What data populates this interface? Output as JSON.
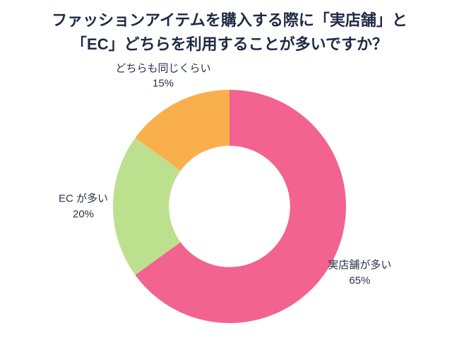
{
  "title": {
    "line1": "ファッションアイテムを購入する際に「実店舗」と",
    "line2": "「EC」どちらを利用することが多いですか？"
  },
  "chart_data": {
    "type": "pie",
    "subtype": "donut",
    "title": "ファッションアイテムを購入する際に「実店舗」と「EC」どちらを利用することが多いですか？",
    "categories": [
      "実店舗が多い",
      "EC が多い",
      "どちらも同じくらい"
    ],
    "values": [
      65,
      20,
      15
    ],
    "slices": [
      {
        "label": "実店舗が多い",
        "value": 65,
        "pct_label": "65%",
        "color": "#F2638F"
      },
      {
        "label": "EC が多い",
        "value": 20,
        "pct_label": "20%",
        "color": "#BDE08F"
      },
      {
        "label": "どちらも同じくらい",
        "value": 15,
        "pct_label": "15%",
        "color": "#FAAF4D"
      }
    ],
    "start_angle_deg": 0,
    "direction": "clockwise",
    "inner_radius_ratio": 0.52,
    "labels_position": "outside",
    "legend": "none",
    "text_color": "#2a3247",
    "background_color": "#ffffff"
  }
}
